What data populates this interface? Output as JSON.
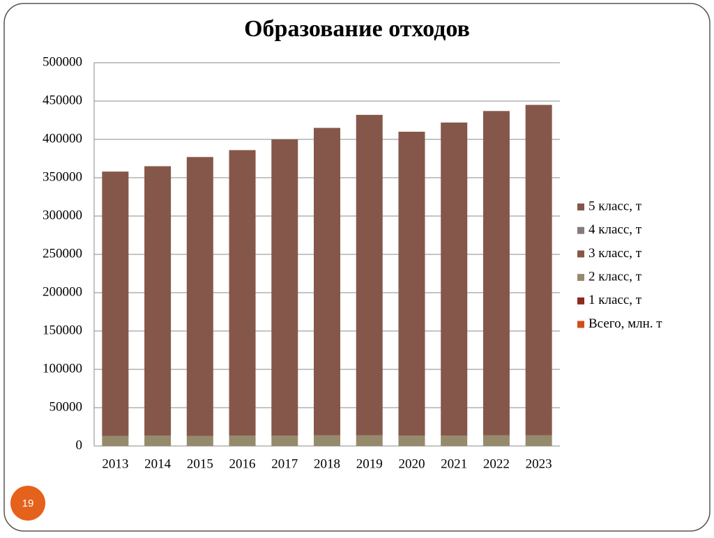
{
  "slide_number": "19",
  "chart_data": {
    "type": "stacked_bar",
    "title": "Образование отходов",
    "categories": [
      "2013",
      "2014",
      "2015",
      "2016",
      "2017",
      "2018",
      "2019",
      "2020",
      "2021",
      "2022",
      "2023"
    ],
    "series": [
      {
        "name": "5 класс, т",
        "color": "#85574a",
        "values": [
          345000,
          351500,
          364000,
          372500,
          386500,
          401000,
          418000,
          396500,
          408500,
          423000,
          431000
        ]
      },
      {
        "name": "4 класс, т",
        "color": "#857a7c",
        "values": [
          0,
          0,
          0,
          0,
          0,
          0,
          0,
          0,
          0,
          0,
          0
        ]
      },
      {
        "name": "3 класс, т",
        "color": "#87574a",
        "values": [
          0,
          0,
          0,
          0,
          0,
          0,
          0,
          0,
          0,
          0,
          0
        ]
      },
      {
        "name": "2 класс, т",
        "color": "#958a6b",
        "values": [
          13000,
          13500,
          13000,
          13500,
          13500,
          14000,
          14000,
          13500,
          13500,
          14000,
          14000
        ]
      },
      {
        "name": "1 класс, т",
        "color": "#8c2a1c",
        "values": [
          0,
          0,
          0,
          0,
          0,
          0,
          0,
          0,
          0,
          0,
          0
        ]
      },
      {
        "name": "Всего, млн. т",
        "color": "#d24d1e",
        "values": [
          0,
          0,
          0,
          0,
          0,
          0,
          0,
          0,
          0,
          0,
          0
        ]
      }
    ],
    "ylim": [
      0,
      500000
    ],
    "yticks": [
      0,
      50000,
      100000,
      150000,
      200000,
      250000,
      300000,
      350000,
      400000,
      450000,
      500000
    ],
    "grid": true,
    "legend": "right"
  }
}
